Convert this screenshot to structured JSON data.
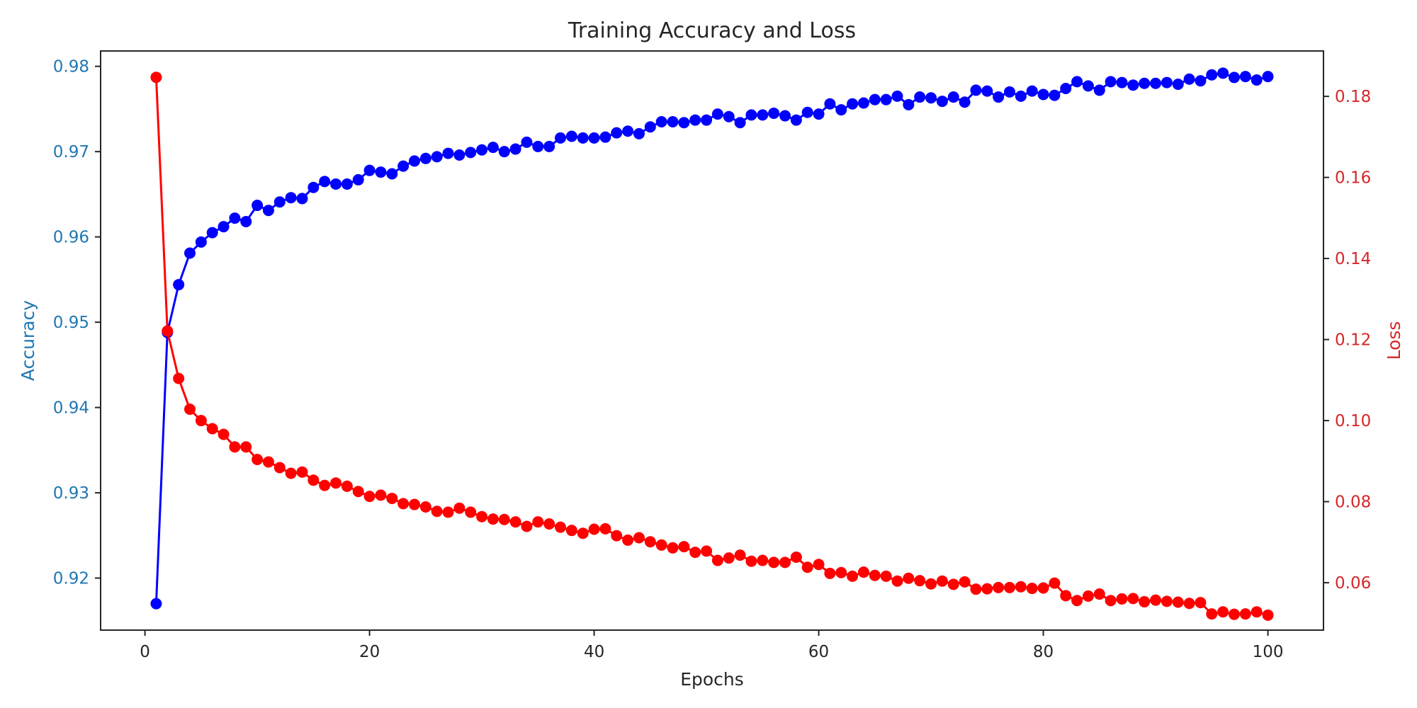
{
  "chart_data": {
    "type": "line",
    "title": "Training Accuracy and Loss",
    "xlabel": "Epochs",
    "ylabel_left": "Accuracy",
    "ylabel_right": "Loss",
    "xlim": [
      -3.95,
      104.95
    ],
    "ylim_left": [
      0.9139,
      0.9818
    ],
    "ylim_right": [
      0.0483,
      0.1912
    ],
    "x_ticks": [
      0,
      20,
      40,
      60,
      80,
      100
    ],
    "y_ticks_left": [
      0.92,
      0.93,
      0.94,
      0.95,
      0.96,
      0.97,
      0.98
    ],
    "y_ticks_right": [
      0.06,
      0.08,
      0.1,
      0.12,
      0.14,
      0.16,
      0.18
    ],
    "y_tick_labels_left": [
      "0.92",
      "0.93",
      "0.94",
      "0.95",
      "0.96",
      "0.97",
      "0.98"
    ],
    "y_tick_labels_right": [
      "0.06",
      "0.08",
      "0.10",
      "0.12",
      "0.14",
      "0.16",
      "0.18"
    ],
    "grid": false,
    "colors": {
      "accuracy_series": "#0000ff",
      "loss_series": "#ff0000",
      "left_axis_text": "#1f77b4",
      "right_axis_text": "#d62728",
      "text": "#262626"
    },
    "x": [
      1,
      2,
      3,
      4,
      5,
      6,
      7,
      8,
      9,
      10,
      11,
      12,
      13,
      14,
      15,
      16,
      17,
      18,
      19,
      20,
      21,
      22,
      23,
      24,
      25,
      26,
      27,
      28,
      29,
      30,
      31,
      32,
      33,
      34,
      35,
      36,
      37,
      38,
      39,
      40,
      41,
      42,
      43,
      44,
      45,
      46,
      47,
      48,
      49,
      50,
      51,
      52,
      53,
      54,
      55,
      56,
      57,
      58,
      59,
      60,
      61,
      62,
      63,
      64,
      65,
      66,
      67,
      68,
      69,
      70,
      71,
      72,
      73,
      74,
      75,
      76,
      77,
      78,
      79,
      80,
      81,
      82,
      83,
      84,
      85,
      86,
      87,
      88,
      89,
      90,
      91,
      92,
      93,
      94,
      95,
      96,
      97,
      98,
      99,
      100
    ],
    "series": [
      {
        "axis": "left",
        "values": [
          0.917,
          0.9488,
          0.9544,
          0.9581,
          0.9594,
          0.9605,
          0.9612,
          0.9622,
          0.9618,
          0.9637,
          0.9631,
          0.9641,
          0.9646,
          0.9645,
          0.9658,
          0.9665,
          0.9662,
          0.9662,
          0.9667,
          0.9678,
          0.9676,
          0.9674,
          0.9683,
          0.9689,
          0.9692,
          0.9694,
          0.9698,
          0.9696,
          0.9699,
          0.9702,
          0.9705,
          0.97,
          0.9703,
          0.9711,
          0.9706,
          0.9706,
          0.9716,
          0.9718,
          0.9716,
          0.9716,
          0.9717,
          0.9722,
          0.9724,
          0.9721,
          0.9729,
          0.9735,
          0.9735,
          0.9734,
          0.9737,
          0.9737,
          0.9744,
          0.9741,
          0.9734,
          0.9743,
          0.9743,
          0.9745,
          0.9742,
          0.9737,
          0.9746,
          0.9744,
          0.9756,
          0.9749,
          0.9756,
          0.9757,
          0.9761,
          0.9761,
          0.9765,
          0.9755,
          0.9764,
          0.9763,
          0.9759,
          0.9764,
          0.9758,
          0.9772,
          0.9771,
          0.9764,
          0.977,
          0.9765,
          0.9771,
          0.9767,
          0.9766,
          0.9774,
          0.9782,
          0.9777,
          0.9772,
          0.9782,
          0.9781,
          0.9778,
          0.978,
          0.978,
          0.9781,
          0.9779,
          0.9785,
          0.9783,
          0.979,
          0.9792,
          0.9787,
          0.9788,
          0.9784,
          0.9788
        ]
      },
      {
        "axis": "right",
        "values": [
          0.1847,
          0.1221,
          0.1104,
          0.1028,
          0.1,
          0.098,
          0.0966,
          0.0935,
          0.0935,
          0.0904,
          0.0898,
          0.0884,
          0.087,
          0.0873,
          0.0853,
          0.084,
          0.0846,
          0.0838,
          0.0825,
          0.0813,
          0.0816,
          0.0808,
          0.0795,
          0.0793,
          0.0787,
          0.0776,
          0.0774,
          0.0784,
          0.0774,
          0.0763,
          0.0757,
          0.0756,
          0.075,
          0.0739,
          0.075,
          0.0745,
          0.0737,
          0.0729,
          0.0722,
          0.0732,
          0.0733,
          0.0716,
          0.0705,
          0.0711,
          0.0701,
          0.0693,
          0.0686,
          0.0689,
          0.0675,
          0.0678,
          0.0655,
          0.0661,
          0.0668,
          0.0653,
          0.0655,
          0.065,
          0.065,
          0.0663,
          0.0638,
          0.0645,
          0.0623,
          0.0625,
          0.0616,
          0.0626,
          0.0618,
          0.0616,
          0.0604,
          0.0611,
          0.0605,
          0.0597,
          0.0604,
          0.0596,
          0.0602,
          0.0584,
          0.0585,
          0.0588,
          0.0588,
          0.059,
          0.0586,
          0.0587,
          0.0599,
          0.0568,
          0.0556,
          0.0567,
          0.0572,
          0.0556,
          0.056,
          0.0561,
          0.0553,
          0.0557,
          0.0554,
          0.0552,
          0.0549,
          0.0551,
          0.0523,
          0.0528,
          0.0522,
          0.0523,
          0.0528,
          0.052
        ]
      }
    ]
  }
}
